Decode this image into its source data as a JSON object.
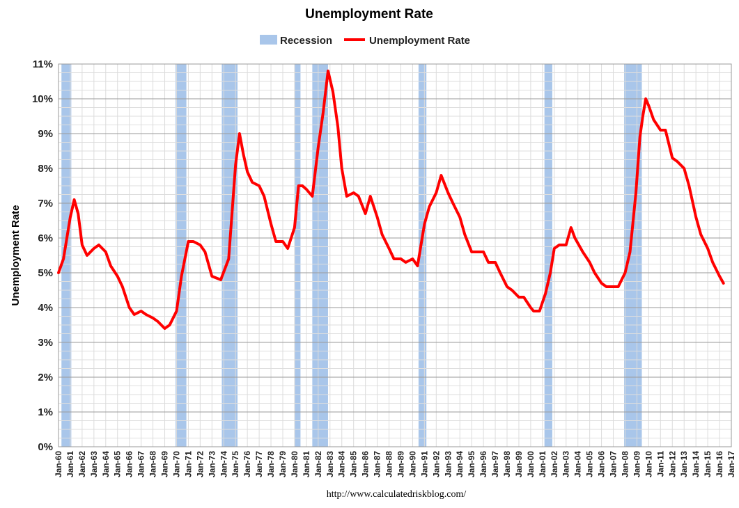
{
  "chart_data": {
    "type": "line",
    "title": "Unemployment Rate",
    "ylabel": "Unemployment Rate",
    "xlabel": "",
    "source_text": "http://www.calculatedriskblog.com/",
    "ylim": [
      0,
      11
    ],
    "xlim": [
      "Jan-60",
      "Jan-17"
    ],
    "y_ticks": [
      "0%",
      "1%",
      "2%",
      "3%",
      "4%",
      "5%",
      "6%",
      "7%",
      "8%",
      "9%",
      "10%",
      "11%"
    ],
    "x_ticks": [
      "Jan-60",
      "Jan-61",
      "Jan-62",
      "Jan-63",
      "Jan-64",
      "Jan-65",
      "Jan-66",
      "Jan-67",
      "Jan-68",
      "Jan-69",
      "Jan-70",
      "Jan-71",
      "Jan-72",
      "Jan-73",
      "Jan-74",
      "Jan-75",
      "Jan-76",
      "Jan-77",
      "Jan-78",
      "Jan-79",
      "Jan-80",
      "Jan-81",
      "Jan-82",
      "Jan-83",
      "Jan-84",
      "Jan-85",
      "Jan-86",
      "Jan-87",
      "Jan-88",
      "Jan-89",
      "Jan-90",
      "Jan-91",
      "Jan-92",
      "Jan-93",
      "Jan-94",
      "Jan-95",
      "Jan-96",
      "Jan-97",
      "Jan-98",
      "Jan-99",
      "Jan-00",
      "Jan-01",
      "Jan-02",
      "Jan-03",
      "Jan-04",
      "Jan-05",
      "Jan-06",
      "Jan-07",
      "Jan-08",
      "Jan-09",
      "Jan-10",
      "Jan-11",
      "Jan-12",
      "Jan-13",
      "Jan-14",
      "Jan-15",
      "Jan-16",
      "Jan-17"
    ],
    "grid": true,
    "legend_position": "top-center",
    "series": [
      {
        "name": "Unemployment Rate",
        "type": "line",
        "color": "#ff0000",
        "x": [
          "1960-01",
          "1960-06",
          "1961-01",
          "1961-05",
          "1961-09",
          "1962-01",
          "1962-06",
          "1963-01",
          "1963-06",
          "1964-01",
          "1964-06",
          "1965-01",
          "1965-06",
          "1966-01",
          "1966-06",
          "1967-01",
          "1967-06",
          "1968-01",
          "1968-06",
          "1969-01",
          "1969-06",
          "1970-01",
          "1970-06",
          "1971-01",
          "1971-06",
          "1972-01",
          "1972-06",
          "1973-01",
          "1973-10",
          "1974-06",
          "1975-01",
          "1975-05",
          "1975-09",
          "1976-01",
          "1976-06",
          "1977-01",
          "1977-06",
          "1978-01",
          "1978-06",
          "1979-01",
          "1979-06",
          "1980-01",
          "1980-05",
          "1980-09",
          "1981-01",
          "1981-07",
          "1982-01",
          "1982-06",
          "1982-11",
          "1983-04",
          "1983-09",
          "1984-01",
          "1984-06",
          "1985-01",
          "1985-06",
          "1986-01",
          "1986-06",
          "1987-01",
          "1987-06",
          "1988-01",
          "1988-06",
          "1989-01",
          "1989-06",
          "1990-01",
          "1990-06",
          "1991-01",
          "1991-06",
          "1992-01",
          "1992-06",
          "1993-01",
          "1993-06",
          "1994-01",
          "1994-06",
          "1995-01",
          "1995-06",
          "1996-01",
          "1996-06",
          "1997-01",
          "1997-06",
          "1998-01",
          "1998-06",
          "1999-01",
          "1999-06",
          "2000-01",
          "2000-04",
          "2000-10",
          "2001-04",
          "2001-09",
          "2002-01",
          "2002-06",
          "2003-01",
          "2003-06",
          "2003-10",
          "2004-06",
          "2005-01",
          "2005-06",
          "2006-01",
          "2006-06",
          "2007-01",
          "2007-06",
          "2008-01",
          "2008-06",
          "2008-12",
          "2009-04",
          "2009-07",
          "2009-10",
          "2010-01",
          "2010-06",
          "2011-01",
          "2011-06",
          "2012-01",
          "2012-06",
          "2013-01",
          "2013-06",
          "2014-01",
          "2014-06",
          "2015-01",
          "2015-06",
          "2016-01",
          "2016-05"
        ],
        "y": [
          5.0,
          5.4,
          6.6,
          7.1,
          6.7,
          5.8,
          5.5,
          5.7,
          5.8,
          5.6,
          5.2,
          4.9,
          4.6,
          4.0,
          3.8,
          3.9,
          3.8,
          3.7,
          3.6,
          3.4,
          3.5,
          3.9,
          4.9,
          5.9,
          5.9,
          5.8,
          5.6,
          4.9,
          4.8,
          5.4,
          8.1,
          9.0,
          8.4,
          7.9,
          7.6,
          7.5,
          7.2,
          6.4,
          5.9,
          5.9,
          5.7,
          6.3,
          7.5,
          7.5,
          7.4,
          7.2,
          8.6,
          9.6,
          10.8,
          10.2,
          9.2,
          8.0,
          7.2,
          7.3,
          7.2,
          6.7,
          7.2,
          6.6,
          6.1,
          5.7,
          5.4,
          5.4,
          5.3,
          5.4,
          5.2,
          6.4,
          6.9,
          7.3,
          7.8,
          7.3,
          7.0,
          6.6,
          6.1,
          5.6,
          5.6,
          5.6,
          5.3,
          5.3,
          5.0,
          4.6,
          4.5,
          4.3,
          4.3,
          4.0,
          3.9,
          3.9,
          4.4,
          5.0,
          5.7,
          5.8,
          5.8,
          6.3,
          6.0,
          5.6,
          5.3,
          5.0,
          4.7,
          4.6,
          4.6,
          4.6,
          5.0,
          5.6,
          7.3,
          8.9,
          9.5,
          10.0,
          9.8,
          9.4,
          9.1,
          9.1,
          8.3,
          8.2,
          8.0,
          7.5,
          6.6,
          6.1,
          5.7,
          5.3,
          4.9,
          4.7
        ]
      },
      {
        "name": "Recession",
        "type": "bar",
        "color": "#a9c6ea",
        "periods": [
          [
            "1960-04",
            "1961-02"
          ],
          [
            "1969-12",
            "1970-11"
          ],
          [
            "1973-11",
            "1975-03"
          ],
          [
            "1980-01",
            "1980-07"
          ],
          [
            "1981-07",
            "1982-11"
          ],
          [
            "1990-07",
            "1991-03"
          ],
          [
            "2001-03",
            "2001-11"
          ],
          [
            "2007-12",
            "2009-06"
          ]
        ]
      }
    ]
  }
}
